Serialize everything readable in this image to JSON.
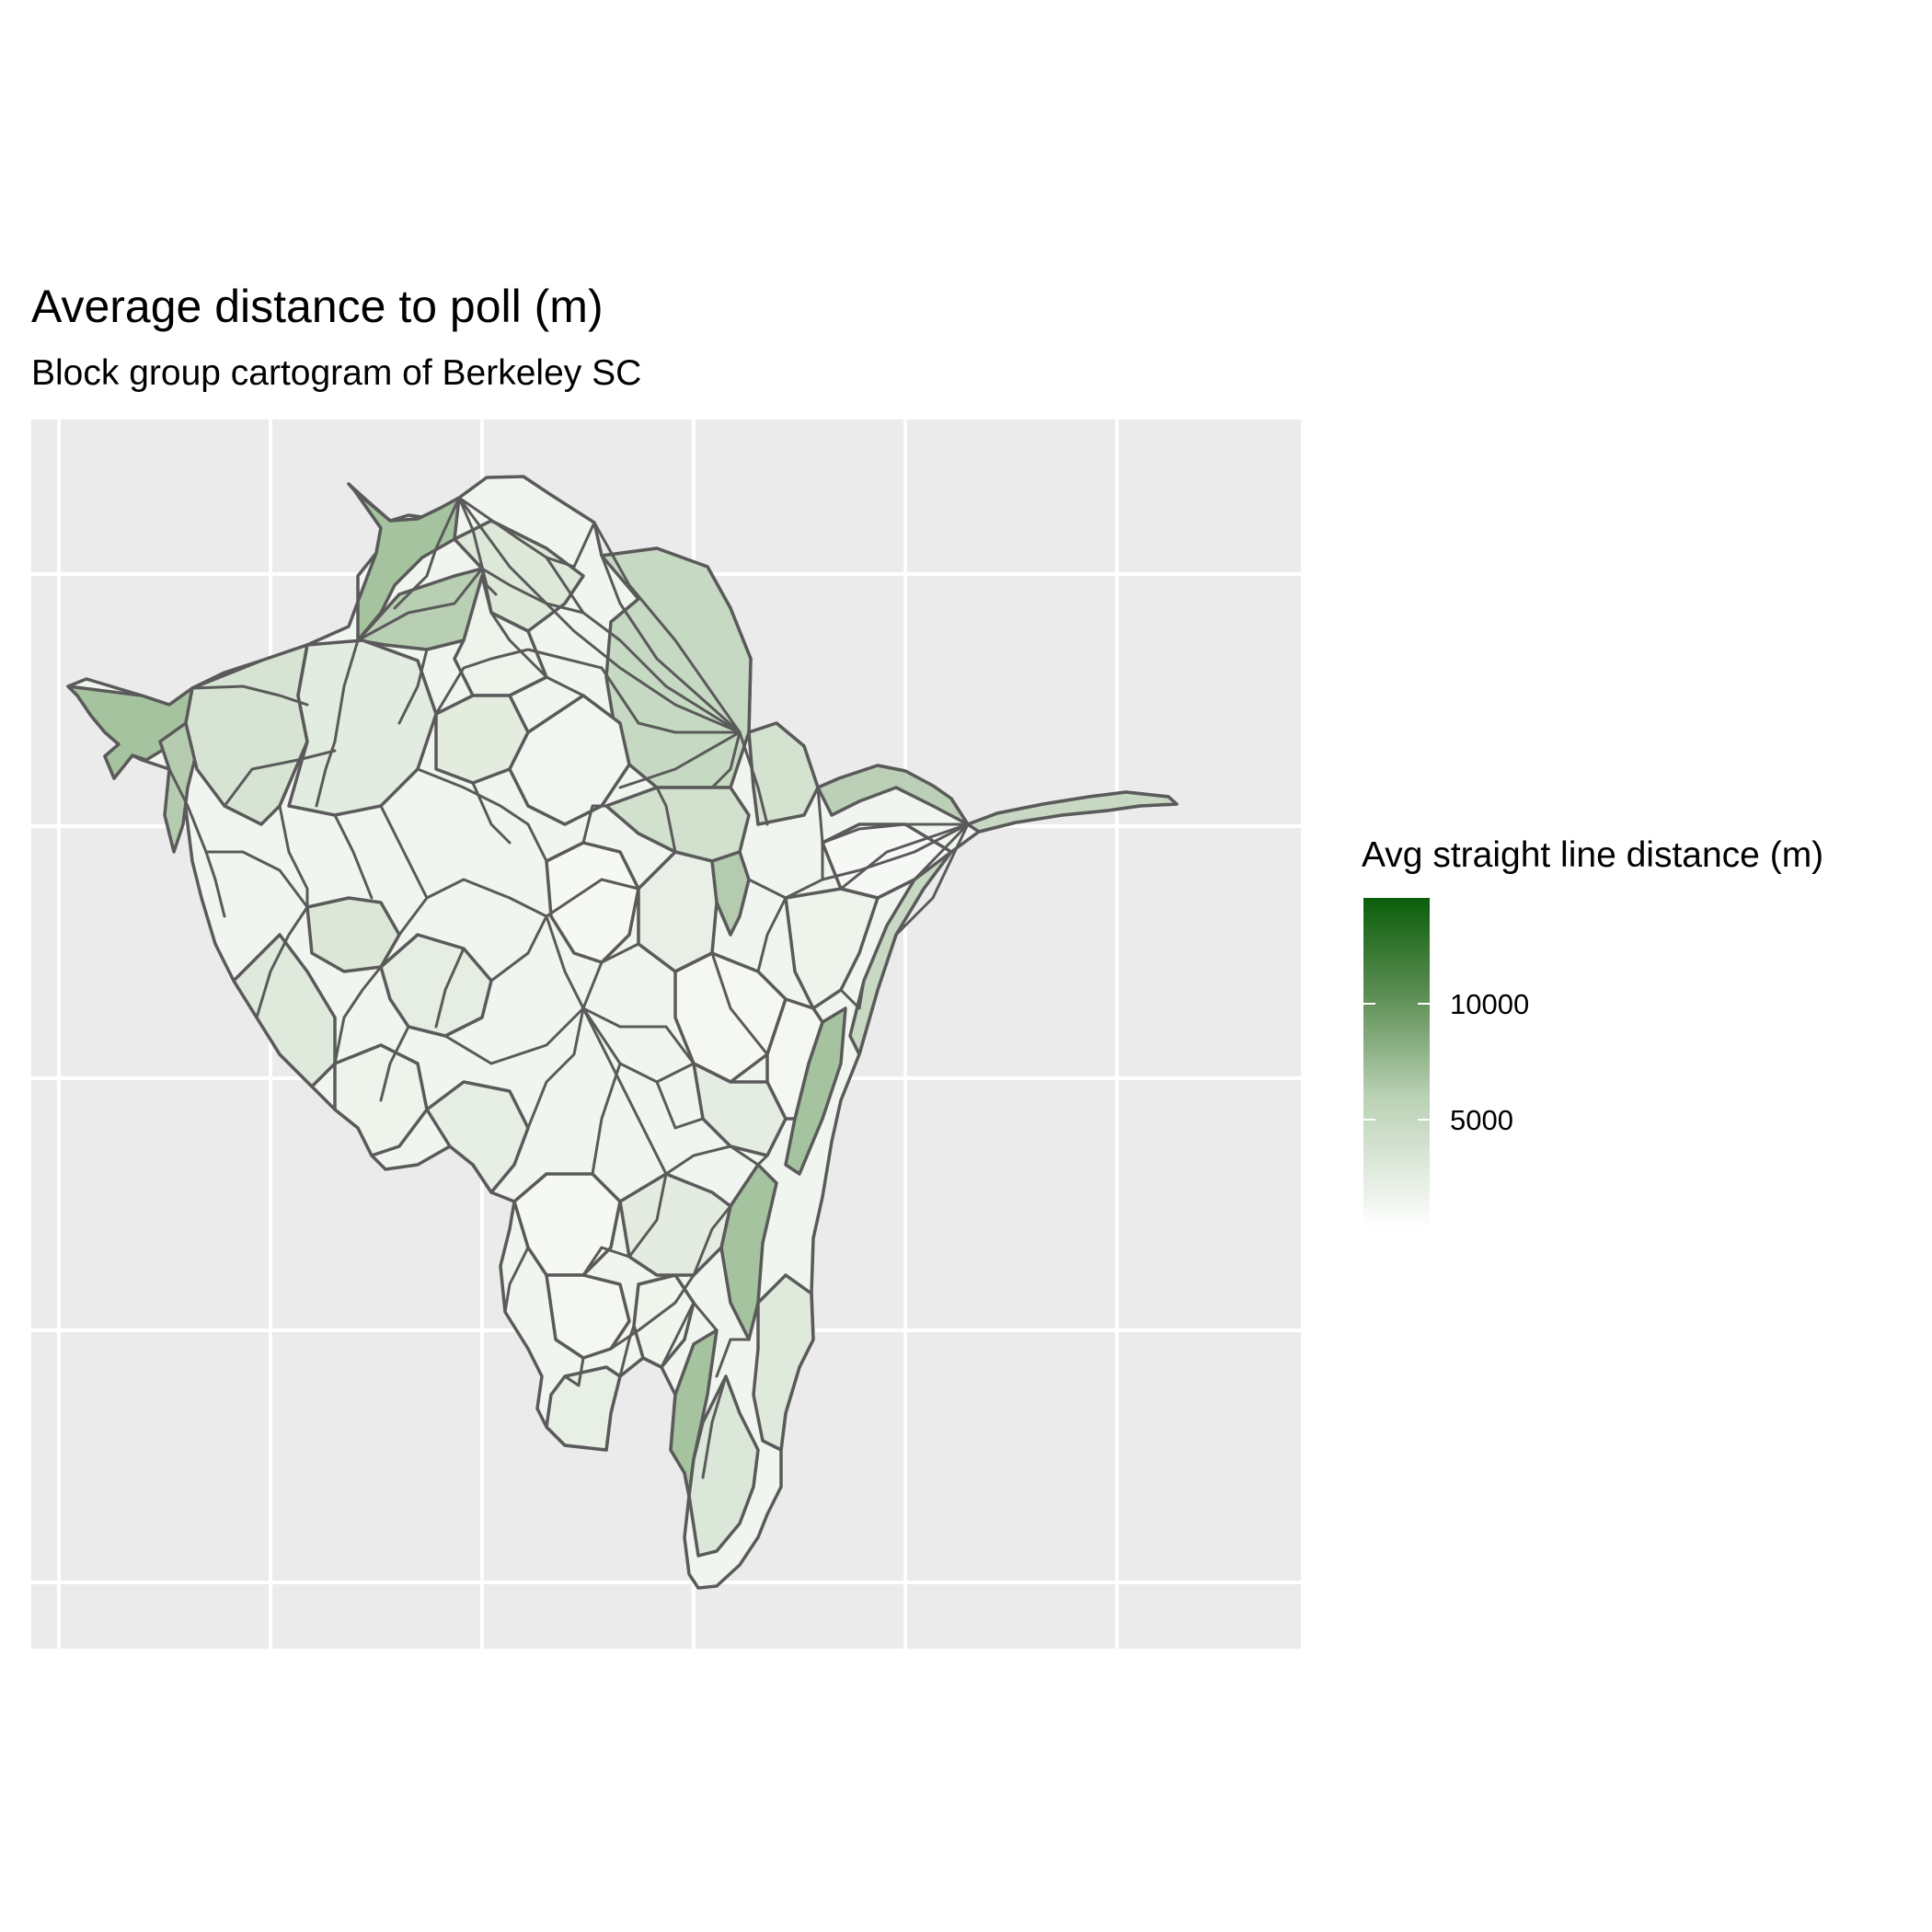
{
  "title": "Average distance to poll (m)",
  "subtitle": "Block group cartogram of Berkeley SC",
  "legend": {
    "title": "Avg straight line distance (m)",
    "labels": [
      "10000",
      "5000"
    ],
    "color_low": "#ffffff",
    "color_high": "#0b5e0b"
  },
  "colors": {
    "panel_background": "#ebebeb",
    "grid_line": "#ffffff",
    "border": "#5a5a5a"
  }
}
